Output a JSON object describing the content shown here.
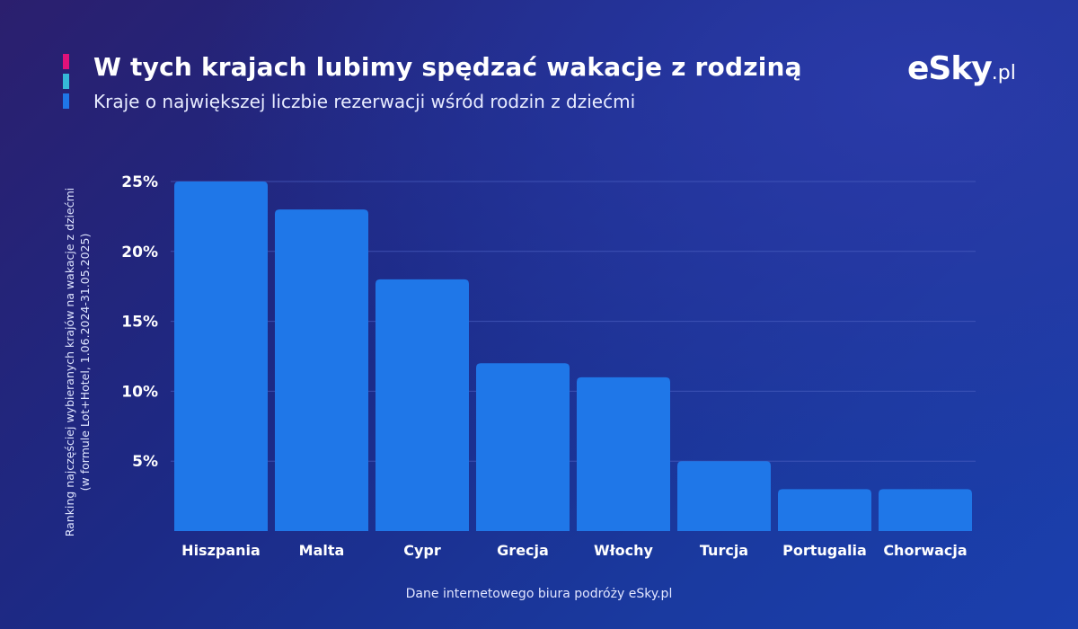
{
  "header": {
    "title": "W tych krajach lubimy spędzać wakacje z rodziną",
    "subtitle": "Kraje o największej liczbie rezerwacji wśród rodzin z dziećmi"
  },
  "logo": {
    "main": "eSky",
    "tld": ".pl"
  },
  "footer": {
    "source": "Dane internetowego biura podróży eSky.pl"
  },
  "colors": {
    "bar": "#1f77e8",
    "grid": "#4a5fc0",
    "accent_pink": "#e0127a",
    "accent_cyan": "#35b8d8",
    "accent_blue": "#1f77e8"
  },
  "chart_data": {
    "type": "bar",
    "categories": [
      "Hiszpania",
      "Malta",
      "Cypr",
      "Grecja",
      "Włochy",
      "Turcja",
      "Portugalia",
      "Chorwacja"
    ],
    "values": [
      25,
      23,
      18,
      12,
      11,
      5,
      3,
      3
    ],
    "ylabel_line1": "Ranking najczęściej wybieranych krajów na wakacje z dziećmi",
    "ylabel_line2": "(w formule Lot+Hotel, 1.06.2024-31.05.2025)",
    "yticks": [
      5,
      10,
      15,
      20,
      25
    ],
    "ytick_labels": [
      "5%",
      "10%",
      "15%",
      "20%",
      "25%"
    ],
    "ylim": [
      0,
      25
    ],
    "grid": true
  }
}
